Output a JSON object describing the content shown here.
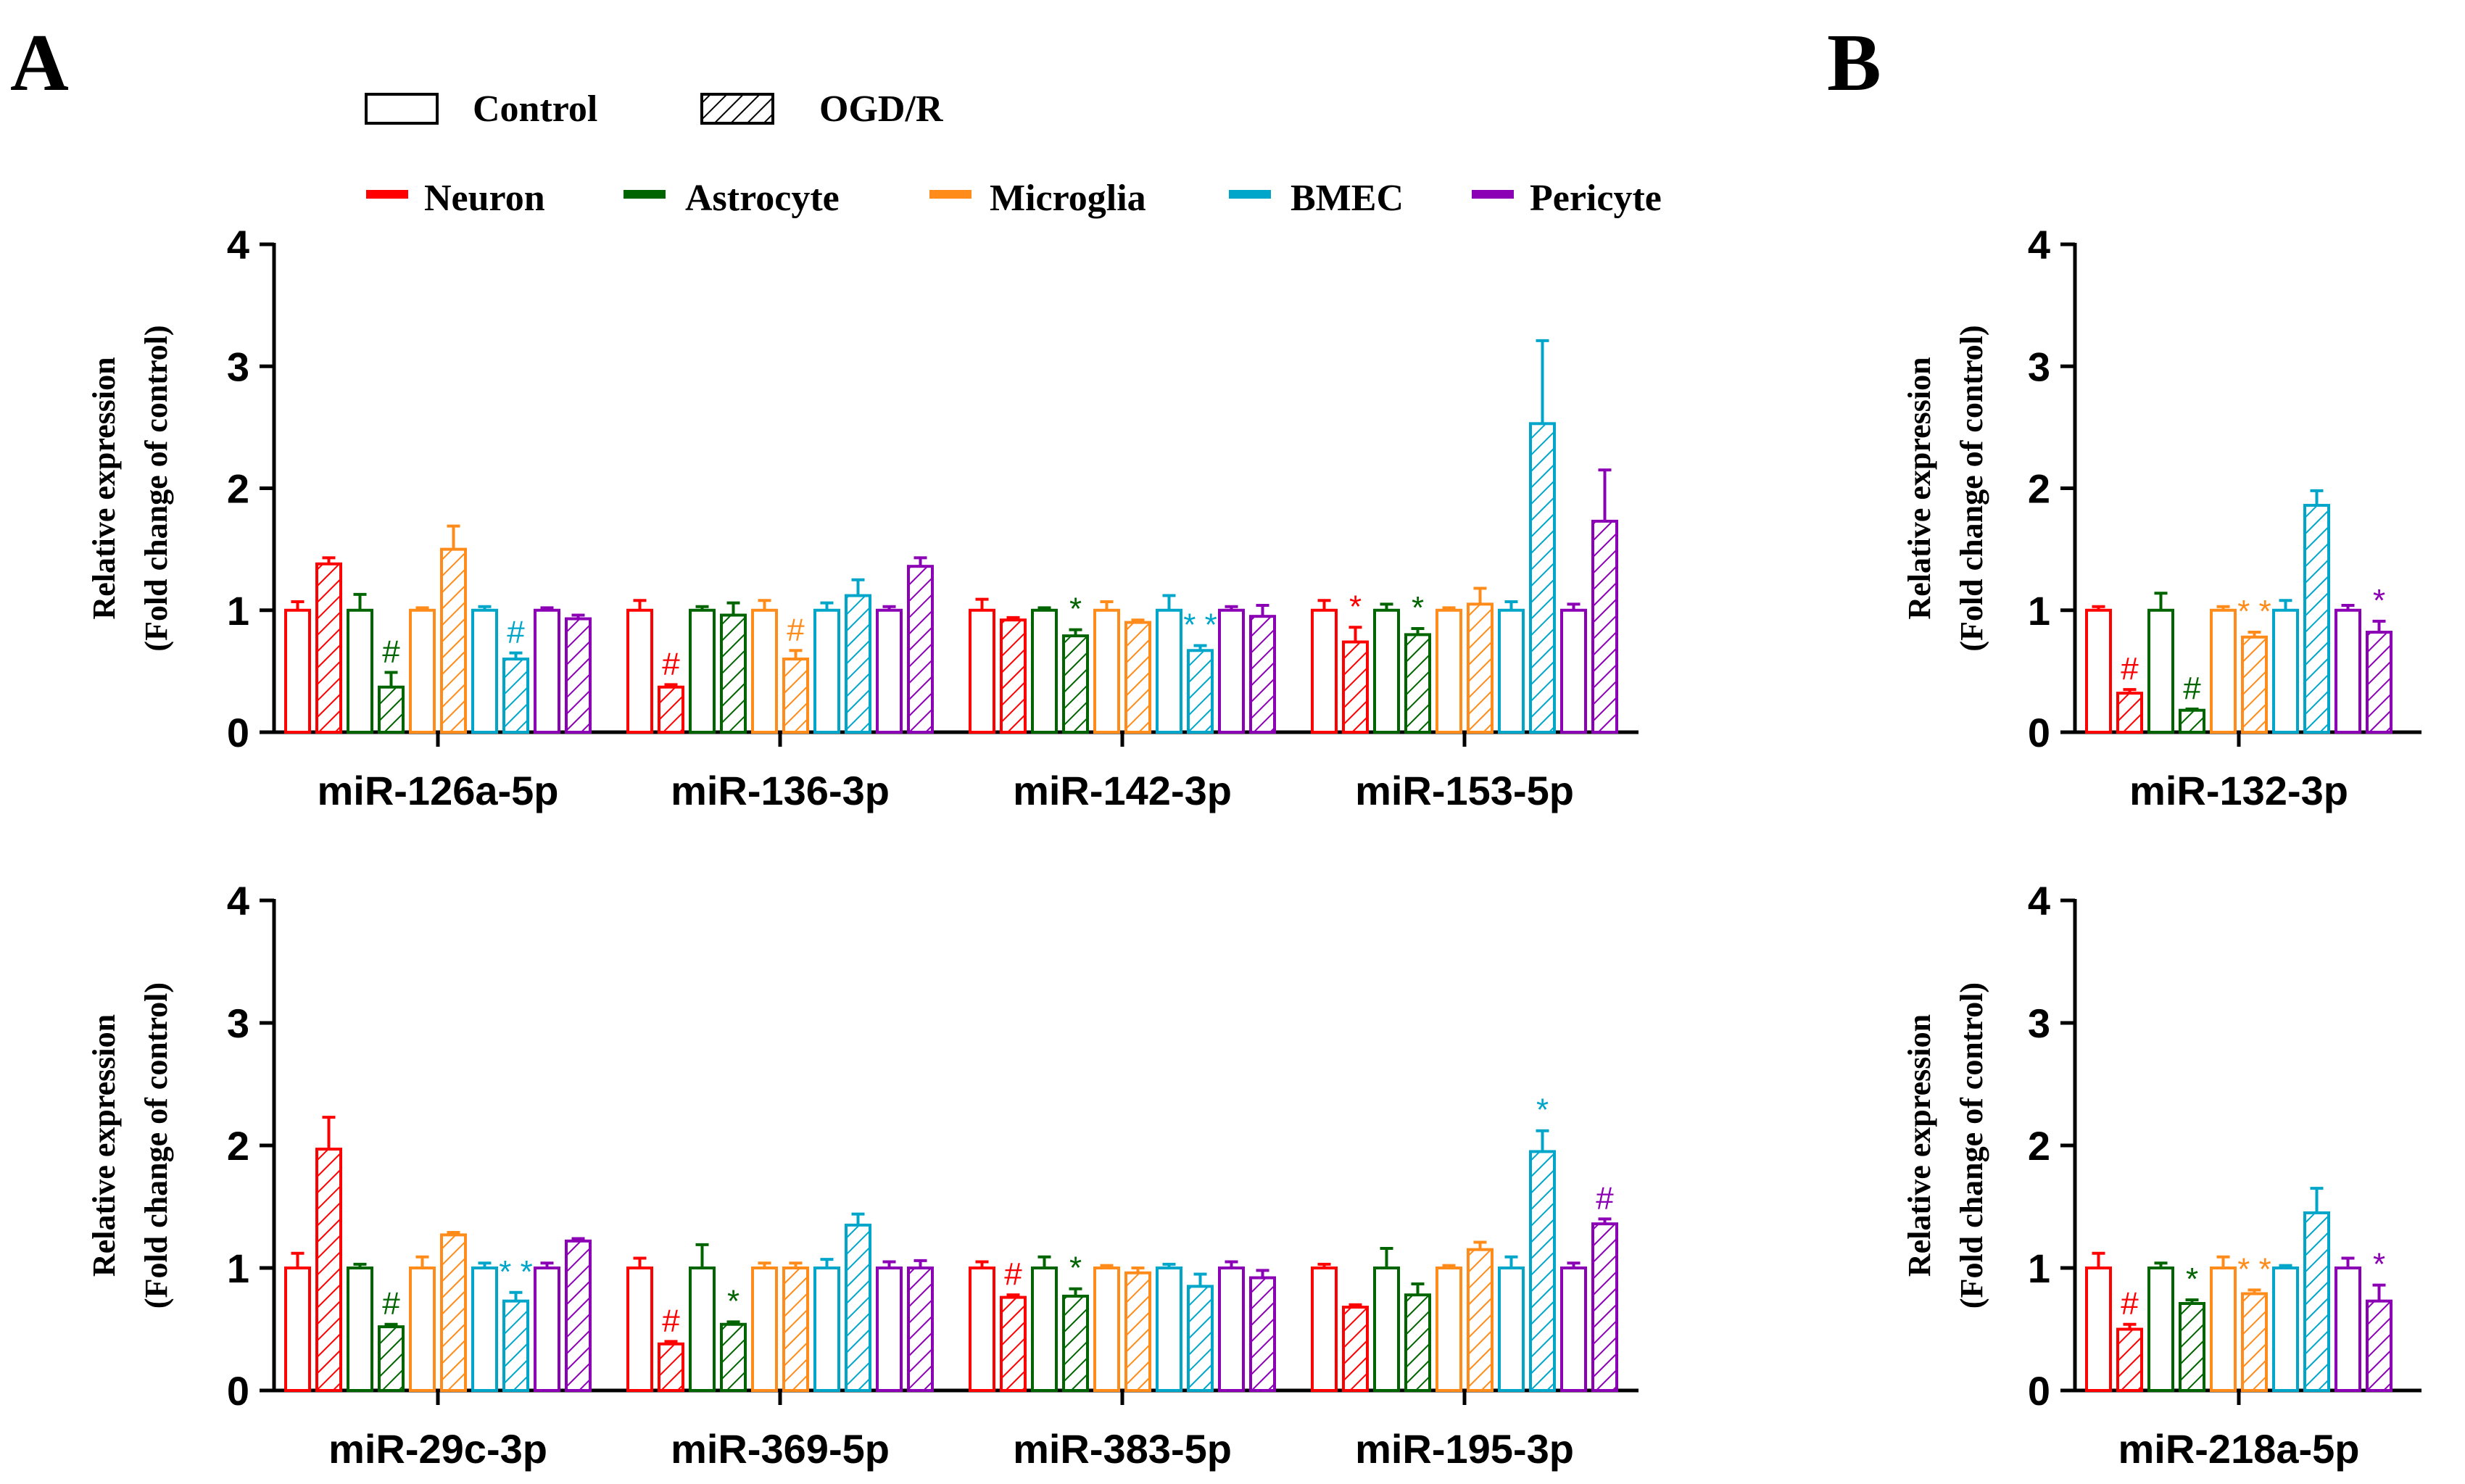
{
  "panel_labels": {
    "A": "A",
    "B": "B"
  },
  "legend": {
    "conditions": [
      {
        "name": "Control",
        "pattern": "open"
      },
      {
        "name": "OGD/R",
        "pattern": "hatched"
      }
    ],
    "cell_types": [
      {
        "name": "Neuron",
        "color": "#ff0000"
      },
      {
        "name": "Astrocyte",
        "color": "#006400"
      },
      {
        "name": "Microglia",
        "color": "#ff8c1a"
      },
      {
        "name": "BMEC",
        "color": "#00a6c9"
      },
      {
        "name": "Pericyte",
        "color": "#8b00b5"
      }
    ]
  },
  "chart_data": [
    {
      "type": "bar",
      "panel": "A",
      "position": "top",
      "ylabel": [
        "Relative expression",
        "(Fold change of control)"
      ],
      "ylim": [
        0,
        4
      ],
      "yticks": [
        "0",
        "1",
        "2",
        "3",
        "4"
      ],
      "cell_types": [
        "Neuron",
        "Astrocyte",
        "Microglia",
        "BMEC",
        "Pericyte"
      ],
      "conditions": [
        "Control",
        "OGD/R"
      ],
      "groups": [
        {
          "label": "miR-126a-5p",
          "bars": [
            {
              "cell": "Neuron",
              "condition": "Control",
              "value": 1.0,
              "err": 0.07
            },
            {
              "cell": "Neuron",
              "condition": "OGD/R",
              "value": 1.38,
              "err": 0.05
            },
            {
              "cell": "Astrocyte",
              "condition": "Control",
              "value": 1.0,
              "err": 0.13
            },
            {
              "cell": "Astrocyte",
              "condition": "OGD/R",
              "value": 0.37,
              "err": 0.12,
              "mark": "#"
            },
            {
              "cell": "Microglia",
              "condition": "Control",
              "value": 1.0,
              "err": 0.02
            },
            {
              "cell": "Microglia",
              "condition": "OGD/R",
              "value": 1.5,
              "err": 0.19
            },
            {
              "cell": "BMEC",
              "condition": "Control",
              "value": 1.0,
              "err": 0.03
            },
            {
              "cell": "BMEC",
              "condition": "OGD/R",
              "value": 0.6,
              "err": 0.05,
              "mark": "#"
            },
            {
              "cell": "Pericyte",
              "condition": "Control",
              "value": 1.0,
              "err": 0.02
            },
            {
              "cell": "Pericyte",
              "condition": "OGD/R",
              "value": 0.93,
              "err": 0.03
            }
          ]
        },
        {
          "label": "miR-136-3p",
          "bars": [
            {
              "cell": "Neuron",
              "condition": "Control",
              "value": 1.0,
              "err": 0.08
            },
            {
              "cell": "Neuron",
              "condition": "OGD/R",
              "value": 0.37,
              "err": 0.02,
              "mark": "#"
            },
            {
              "cell": "Astrocyte",
              "condition": "Control",
              "value": 1.0,
              "err": 0.03
            },
            {
              "cell": "Astrocyte",
              "condition": "OGD/R",
              "value": 0.96,
              "err": 0.1
            },
            {
              "cell": "Microglia",
              "condition": "Control",
              "value": 1.0,
              "err": 0.08
            },
            {
              "cell": "Microglia",
              "condition": "OGD/R",
              "value": 0.6,
              "err": 0.07,
              "mark": "#"
            },
            {
              "cell": "BMEC",
              "condition": "Control",
              "value": 1.0,
              "err": 0.06
            },
            {
              "cell": "BMEC",
              "condition": "OGD/R",
              "value": 1.12,
              "err": 0.13
            },
            {
              "cell": "Pericyte",
              "condition": "Control",
              "value": 1.0,
              "err": 0.03
            },
            {
              "cell": "Pericyte",
              "condition": "OGD/R",
              "value": 1.36,
              "err": 0.07
            }
          ]
        },
        {
          "label": "miR-142-3p",
          "bars": [
            {
              "cell": "Neuron",
              "condition": "Control",
              "value": 1.0,
              "err": 0.09
            },
            {
              "cell": "Neuron",
              "condition": "OGD/R",
              "value": 0.92,
              "err": 0.02
            },
            {
              "cell": "Astrocyte",
              "condition": "Control",
              "value": 1.0,
              "err": 0.02
            },
            {
              "cell": "Astrocyte",
              "condition": "OGD/R",
              "value": 0.79,
              "err": 0.05,
              "mark": "*"
            },
            {
              "cell": "Microglia",
              "condition": "Control",
              "value": 1.0,
              "err": 0.07
            },
            {
              "cell": "Microglia",
              "condition": "OGD/R",
              "value": 0.9,
              "err": 0.02
            },
            {
              "cell": "BMEC",
              "condition": "Control",
              "value": 1.0,
              "err": 0.12
            },
            {
              "cell": "BMEC",
              "condition": "OGD/R",
              "value": 0.67,
              "err": 0.04,
              "mark": "**"
            },
            {
              "cell": "Pericyte",
              "condition": "Control",
              "value": 1.0,
              "err": 0.03
            },
            {
              "cell": "Pericyte",
              "condition": "OGD/R",
              "value": 0.95,
              "err": 0.09
            }
          ]
        },
        {
          "label": "miR-153-5p",
          "bars": [
            {
              "cell": "Neuron",
              "condition": "Control",
              "value": 1.0,
              "err": 0.08
            },
            {
              "cell": "Neuron",
              "condition": "OGD/R",
              "value": 0.74,
              "err": 0.12,
              "mark": "*"
            },
            {
              "cell": "Astrocyte",
              "condition": "Control",
              "value": 1.0,
              "err": 0.05
            },
            {
              "cell": "Astrocyte",
              "condition": "OGD/R",
              "value": 0.8,
              "err": 0.05,
              "mark": "*"
            },
            {
              "cell": "Microglia",
              "condition": "Control",
              "value": 1.0,
              "err": 0.02
            },
            {
              "cell": "Microglia",
              "condition": "OGD/R",
              "value": 1.05,
              "err": 0.13
            },
            {
              "cell": "BMEC",
              "condition": "Control",
              "value": 1.0,
              "err": 0.07
            },
            {
              "cell": "BMEC",
              "condition": "OGD/R",
              "value": 2.53,
              "err": 0.68
            },
            {
              "cell": "Pericyte",
              "condition": "Control",
              "value": 1.0,
              "err": 0.05
            },
            {
              "cell": "Pericyte",
              "condition": "OGD/R",
              "value": 1.73,
              "err": 0.42
            }
          ]
        }
      ]
    },
    {
      "type": "bar",
      "panel": "A",
      "position": "bottom",
      "ylabel": [
        "Relative expression",
        "(Fold change of control)"
      ],
      "ylim": [
        0,
        4
      ],
      "yticks": [
        "0",
        "1",
        "2",
        "3",
        "4"
      ],
      "cell_types": [
        "Neuron",
        "Astrocyte",
        "Microglia",
        "BMEC",
        "Pericyte"
      ],
      "conditions": [
        "Control",
        "OGD/R"
      ],
      "groups": [
        {
          "label": "miR-29c-3p",
          "bars": [
            {
              "cell": "Neuron",
              "condition": "Control",
              "value": 1.0,
              "err": 0.12
            },
            {
              "cell": "Neuron",
              "condition": "OGD/R",
              "value": 1.97,
              "err": 0.26
            },
            {
              "cell": "Astrocyte",
              "condition": "Control",
              "value": 1.0,
              "err": 0.03
            },
            {
              "cell": "Astrocyte",
              "condition": "OGD/R",
              "value": 0.52,
              "err": 0.02,
              "mark": "#"
            },
            {
              "cell": "Microglia",
              "condition": "Control",
              "value": 1.0,
              "err": 0.09
            },
            {
              "cell": "Microglia",
              "condition": "OGD/R",
              "value": 1.27,
              "err": 0.02
            },
            {
              "cell": "BMEC",
              "condition": "Control",
              "value": 1.0,
              "err": 0.04
            },
            {
              "cell": "BMEC",
              "condition": "OGD/R",
              "value": 0.73,
              "err": 0.07,
              "mark": "**"
            },
            {
              "cell": "Pericyte",
              "condition": "Control",
              "value": 1.0,
              "err": 0.04
            },
            {
              "cell": "Pericyte",
              "condition": "OGD/R",
              "value": 1.22,
              "err": 0.02
            }
          ]
        },
        {
          "label": "miR-369-5p",
          "bars": [
            {
              "cell": "Neuron",
              "condition": "Control",
              "value": 1.0,
              "err": 0.08
            },
            {
              "cell": "Neuron",
              "condition": "OGD/R",
              "value": 0.38,
              "err": 0.02,
              "mark": "#"
            },
            {
              "cell": "Astrocyte",
              "condition": "Control",
              "value": 1.0,
              "err": 0.19
            },
            {
              "cell": "Astrocyte",
              "condition": "OGD/R",
              "value": 0.54,
              "err": 0.02,
              "mark": "*"
            },
            {
              "cell": "Microglia",
              "condition": "Control",
              "value": 1.0,
              "err": 0.04
            },
            {
              "cell": "Microglia",
              "condition": "OGD/R",
              "value": 1.0,
              "err": 0.04
            },
            {
              "cell": "BMEC",
              "condition": "Control",
              "value": 1.0,
              "err": 0.07
            },
            {
              "cell": "BMEC",
              "condition": "OGD/R",
              "value": 1.35,
              "err": 0.09
            },
            {
              "cell": "Pericyte",
              "condition": "Control",
              "value": 1.0,
              "err": 0.05
            },
            {
              "cell": "Pericyte",
              "condition": "OGD/R",
              "value": 1.0,
              "err": 0.06
            }
          ]
        },
        {
          "label": "miR-383-5p",
          "bars": [
            {
              "cell": "Neuron",
              "condition": "Control",
              "value": 1.0,
              "err": 0.05
            },
            {
              "cell": "Neuron",
              "condition": "OGD/R",
              "value": 0.76,
              "err": 0.02,
              "mark": "#"
            },
            {
              "cell": "Astrocyte",
              "condition": "Control",
              "value": 1.0,
              "err": 0.09
            },
            {
              "cell": "Astrocyte",
              "condition": "OGD/R",
              "value": 0.77,
              "err": 0.06,
              "mark": "*"
            },
            {
              "cell": "Microglia",
              "condition": "Control",
              "value": 1.0,
              "err": 0.02
            },
            {
              "cell": "Microglia",
              "condition": "OGD/R",
              "value": 0.96,
              "err": 0.04
            },
            {
              "cell": "BMEC",
              "condition": "Control",
              "value": 1.0,
              "err": 0.03
            },
            {
              "cell": "BMEC",
              "condition": "OGD/R",
              "value": 0.85,
              "err": 0.1
            },
            {
              "cell": "Pericyte",
              "condition": "Control",
              "value": 1.0,
              "err": 0.05
            },
            {
              "cell": "Pericyte",
              "condition": "OGD/R",
              "value": 0.92,
              "err": 0.06
            }
          ]
        },
        {
          "label": "miR-195-3p",
          "bars": [
            {
              "cell": "Neuron",
              "condition": "Control",
              "value": 1.0,
              "err": 0.03
            },
            {
              "cell": "Neuron",
              "condition": "OGD/R",
              "value": 0.68,
              "err": 0.02
            },
            {
              "cell": "Astrocyte",
              "condition": "Control",
              "value": 1.0,
              "err": 0.16
            },
            {
              "cell": "Astrocyte",
              "condition": "OGD/R",
              "value": 0.78,
              "err": 0.09
            },
            {
              "cell": "Microglia",
              "condition": "Control",
              "value": 1.0,
              "err": 0.02
            },
            {
              "cell": "Microglia",
              "condition": "OGD/R",
              "value": 1.15,
              "err": 0.06
            },
            {
              "cell": "BMEC",
              "condition": "Control",
              "value": 1.0,
              "err": 0.09
            },
            {
              "cell": "BMEC",
              "condition": "OGD/R",
              "value": 1.95,
              "err": 0.17,
              "mark": "*"
            },
            {
              "cell": "Pericyte",
              "condition": "Control",
              "value": 1.0,
              "err": 0.04
            },
            {
              "cell": "Pericyte",
              "condition": "OGD/R",
              "value": 1.36,
              "err": 0.04,
              "mark": "#"
            }
          ]
        }
      ]
    },
    {
      "type": "bar",
      "panel": "B",
      "position": "top",
      "ylabel": [
        "Relative expression",
        "(Fold change of control)"
      ],
      "ylim": [
        0,
        4
      ],
      "yticks": [
        "0",
        "1",
        "2",
        "3",
        "4"
      ],
      "cell_types": [
        "Neuron",
        "Astrocyte",
        "Microglia",
        "BMEC",
        "Pericyte"
      ],
      "conditions": [
        "Control",
        "OGD/R"
      ],
      "groups": [
        {
          "label": "miR-132-3p",
          "bars": [
            {
              "cell": "Neuron",
              "condition": "Control",
              "value": 1.0,
              "err": 0.03
            },
            {
              "cell": "Neuron",
              "condition": "OGD/R",
              "value": 0.32,
              "err": 0.03,
              "mark": "#"
            },
            {
              "cell": "Astrocyte",
              "condition": "Control",
              "value": 1.0,
              "err": 0.14
            },
            {
              "cell": "Astrocyte",
              "condition": "OGD/R",
              "value": 0.18,
              "err": 0.01,
              "mark": "#"
            },
            {
              "cell": "Microglia",
              "condition": "Control",
              "value": 1.0,
              "err": 0.03
            },
            {
              "cell": "Microglia",
              "condition": "OGD/R",
              "value": 0.78,
              "err": 0.04,
              "mark": "**"
            },
            {
              "cell": "BMEC",
              "condition": "Control",
              "value": 1.0,
              "err": 0.08
            },
            {
              "cell": "BMEC",
              "condition": "OGD/R",
              "value": 1.86,
              "err": 0.12
            },
            {
              "cell": "Pericyte",
              "condition": "Control",
              "value": 1.0,
              "err": 0.04
            },
            {
              "cell": "Pericyte",
              "condition": "OGD/R",
              "value": 0.82,
              "err": 0.09,
              "mark": "*"
            }
          ]
        }
      ]
    },
    {
      "type": "bar",
      "panel": "B",
      "position": "bottom",
      "ylabel": [
        "Relative expression",
        "(Fold change of control)"
      ],
      "ylim": [
        0,
        4
      ],
      "yticks": [
        "0",
        "1",
        "2",
        "3",
        "4"
      ],
      "cell_types": [
        "Neuron",
        "Astrocyte",
        "Microglia",
        "BMEC",
        "Pericyte"
      ],
      "conditions": [
        "Control",
        "OGD/R"
      ],
      "groups": [
        {
          "label": "miR-218a-5p",
          "bars": [
            {
              "cell": "Neuron",
              "condition": "Control",
              "value": 1.0,
              "err": 0.12
            },
            {
              "cell": "Neuron",
              "condition": "OGD/R",
              "value": 0.5,
              "err": 0.04,
              "mark": "#"
            },
            {
              "cell": "Astrocyte",
              "condition": "Control",
              "value": 1.0,
              "err": 0.04
            },
            {
              "cell": "Astrocyte",
              "condition": "OGD/R",
              "value": 0.71,
              "err": 0.03,
              "mark": "*"
            },
            {
              "cell": "Microglia",
              "condition": "Control",
              "value": 1.0,
              "err": 0.09
            },
            {
              "cell": "Microglia",
              "condition": "OGD/R",
              "value": 0.79,
              "err": 0.03,
              "mark": "**"
            },
            {
              "cell": "BMEC",
              "condition": "Control",
              "value": 1.0,
              "err": 0.02
            },
            {
              "cell": "BMEC",
              "condition": "OGD/R",
              "value": 1.45,
              "err": 0.2
            },
            {
              "cell": "Pericyte",
              "condition": "Control",
              "value": 1.0,
              "err": 0.08
            },
            {
              "cell": "Pericyte",
              "condition": "OGD/R",
              "value": 0.73,
              "err": 0.13,
              "mark": "*"
            }
          ]
        }
      ]
    }
  ]
}
